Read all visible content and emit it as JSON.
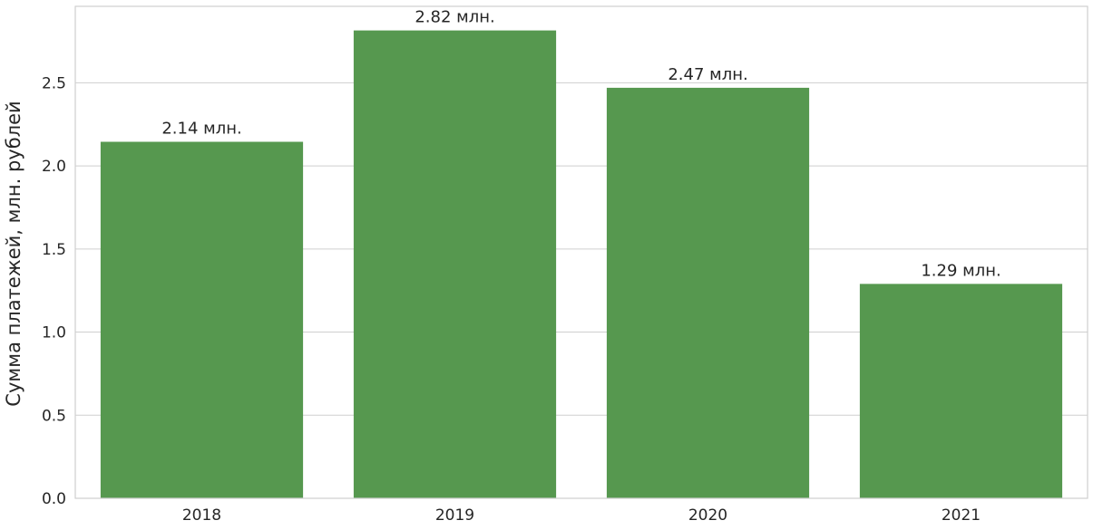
{
  "chart_data": {
    "type": "bar",
    "categories": [
      "2018",
      "2019",
      "2020",
      "2021"
    ],
    "values": [
      2.145,
      2.815,
      2.47,
      1.29
    ],
    "data_labels": [
      "2.14 млн.",
      "2.82 млн.",
      "2.47 млн.",
      "1.29 млн."
    ],
    "xlabel": "",
    "ylabel": "Сумма платежей, млн. рублей",
    "ylim": [
      0,
      2.96
    ],
    "yticks": [
      0.0,
      0.5,
      1.0,
      1.5,
      2.0,
      2.5
    ],
    "ytick_labels": [
      "0.0",
      "0.5",
      "1.0",
      "1.5",
      "2.0",
      "2.5"
    ],
    "grid": true,
    "colors": {
      "bar": "#56984f",
      "grid": "#cfcfcf",
      "frame": "#cfcfcf",
      "text": "#262626"
    }
  }
}
